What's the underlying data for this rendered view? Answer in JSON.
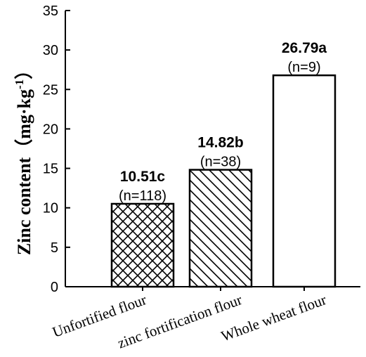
{
  "chart_data": {
    "type": "bar",
    "categories": [
      "Unfortified flour",
      "zinc fortification flour",
      "Whole wheat flour"
    ],
    "values": [
      10.51,
      14.82,
      26.79
    ],
    "bar_labels": [
      "10.51c",
      "14.82b",
      "26.79a"
    ],
    "n_labels": [
      "(n=118)",
      "(n=38)",
      "(n=9)"
    ],
    "patterns": [
      "crosshatch",
      "diagonal",
      "none"
    ],
    "ylabel": "Zinc content（mg·kg",
    "ylabel_superscript": "-1",
    "ylabel_close": "）",
    "ylim": [
      0,
      35
    ],
    "yticks": [
      "0",
      "5",
      "10",
      "15",
      "20",
      "25",
      "30",
      "35"
    ],
    "grid": false,
    "colors": {
      "bar_fill": "#ffffff",
      "stroke": "#000000"
    }
  }
}
